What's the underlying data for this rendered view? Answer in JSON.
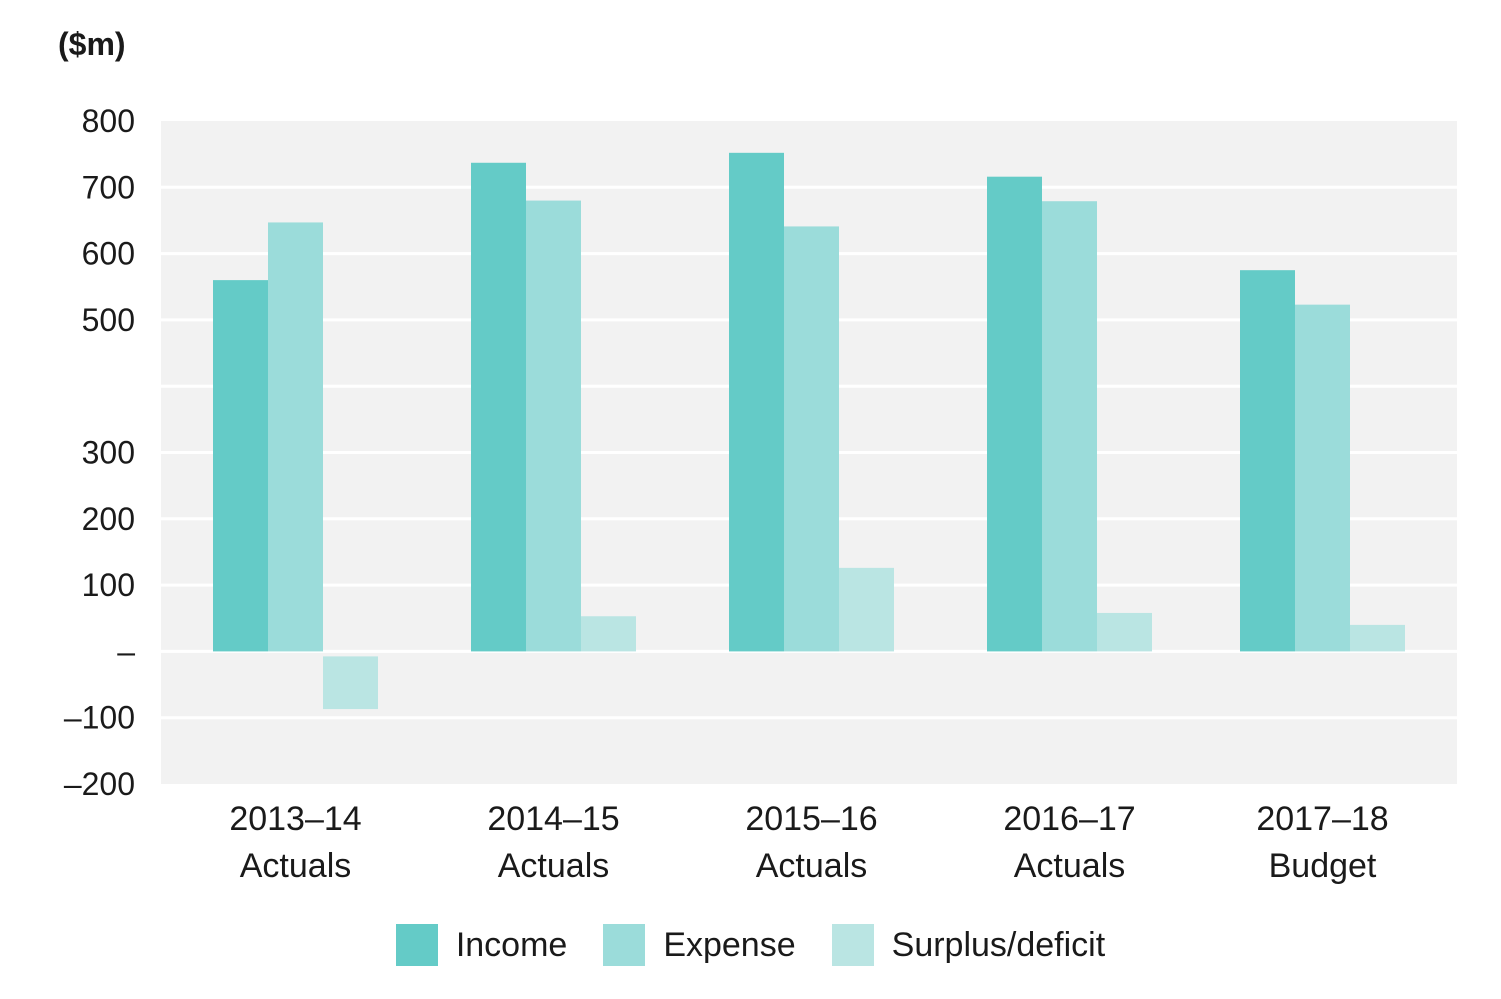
{
  "chart_data": {
    "type": "bar",
    "unit_label": "($m)",
    "categories": [
      [
        "2013–14",
        "Actuals"
      ],
      [
        "2014–15",
        "Actuals"
      ],
      [
        "2015–16",
        "Actuals"
      ],
      [
        "2016–17",
        "Actuals"
      ],
      [
        "2017–18",
        "Budget"
      ]
    ],
    "series": [
      {
        "name": "Income",
        "color": "#64CBC7",
        "values": [
          560,
          737,
          752,
          716,
          575
        ]
      },
      {
        "name": "Expense",
        "color": "#9BDCDA",
        "values": [
          647,
          680,
          641,
          679,
          523
        ]
      },
      {
        "name": "Surplus/deficit",
        "color": "#BAE5E3",
        "values": [
          -87,
          53,
          126,
          58,
          40
        ]
      }
    ],
    "ylim": [
      -200,
      800
    ],
    "yticks": [
      {
        "value": 800,
        "label": "800"
      },
      {
        "value": 700,
        "label": "700"
      },
      {
        "value": 600,
        "label": "600"
      },
      {
        "value": 500,
        "label": "500"
      },
      {
        "value": 300,
        "label": "300"
      },
      {
        "value": 200,
        "label": "200"
      },
      {
        "value": 100,
        "label": "100"
      },
      {
        "value": 0,
        "label": "–"
      },
      {
        "value": -100,
        "label": "–100"
      },
      {
        "value": -200,
        "label": "–200"
      }
    ],
    "grid": true,
    "legend_position": "bottom",
    "plot_background": "#F2F2F2",
    "grid_color": "#FFFFFF"
  }
}
